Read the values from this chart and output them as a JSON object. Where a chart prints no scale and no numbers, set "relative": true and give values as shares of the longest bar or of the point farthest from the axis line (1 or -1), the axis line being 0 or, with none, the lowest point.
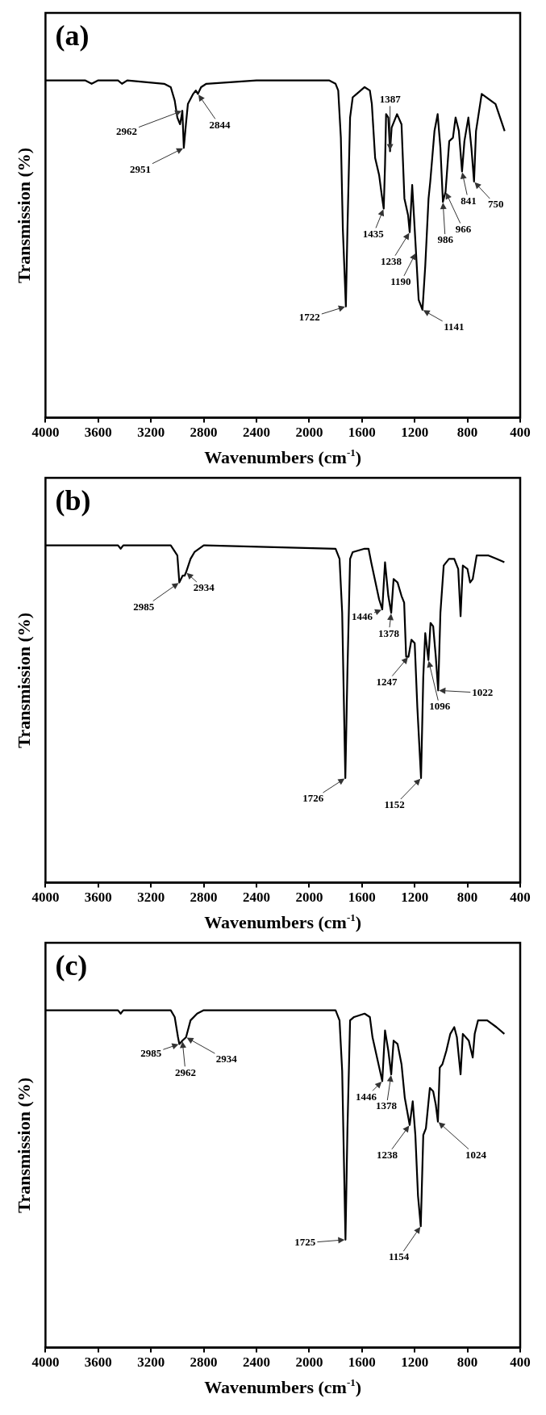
{
  "chart_data": [
    {
      "type": "line",
      "title": "(a)",
      "xlabel": "Wavenumbers (cm$^{-1}$)",
      "ylabel": "Transmission (%)",
      "relative": true,
      "color": "#000000",
      "xlim": [
        4000,
        400
      ],
      "xticks": [
        4000,
        3600,
        3200,
        2800,
        2400,
        2000,
        1600,
        1200,
        800,
        400
      ],
      "x": [
        4000,
        3700,
        3650,
        3600,
        3450,
        3420,
        3380,
        3100,
        3050,
        3020,
        3000,
        2980,
        2970,
        2962,
        2951,
        2935,
        2920,
        2880,
        2860,
        2844,
        2820,
        2780,
        2400,
        2000,
        1850,
        1800,
        1780,
        1760,
        1745,
        1722,
        1710,
        1690,
        1670,
        1640,
        1580,
        1540,
        1525,
        1500,
        1470,
        1450,
        1435,
        1425,
        1417,
        1400,
        1387,
        1375,
        1334,
        1300,
        1278,
        1250,
        1238,
        1219,
        1190,
        1170,
        1141,
        1120,
        1095,
        1082,
        1050,
        1026,
        1005,
        986,
        966,
        938,
        910,
        890,
        865,
        841,
        823,
        793,
        770,
        750,
        735,
        692,
        587,
        518
      ],
      "values": [
        1.0,
        1.0,
        0.99,
        1.0,
        1.0,
        0.99,
        1.0,
        0.99,
        0.98,
        0.94,
        0.89,
        0.87,
        0.89,
        0.91,
        0.8,
        0.87,
        0.93,
        0.96,
        0.97,
        0.96,
        0.98,
        0.99,
        1.0,
        1.0,
        1.0,
        0.99,
        0.97,
        0.83,
        0.56,
        0.33,
        0.56,
        0.89,
        0.95,
        0.96,
        0.98,
        0.97,
        0.93,
        0.77,
        0.72,
        0.66,
        0.62,
        0.75,
        0.9,
        0.89,
        0.79,
        0.86,
        0.9,
        0.87,
        0.65,
        0.6,
        0.55,
        0.69,
        0.49,
        0.35,
        0.32,
        0.45,
        0.65,
        0.7,
        0.85,
        0.9,
        0.8,
        0.64,
        0.67,
        0.82,
        0.83,
        0.89,
        0.85,
        0.73,
        0.82,
        0.89,
        0.8,
        0.7,
        0.85,
        0.96,
        0.93,
        0.85
      ],
      "annotations": [
        {
          "text": "2962",
          "x": 2962,
          "y": 0.91
        },
        {
          "text": "2951",
          "x": 2951,
          "y": 0.8
        },
        {
          "text": "2844",
          "x": 2844,
          "y": 0.96
        },
        {
          "text": "1722",
          "x": 1722,
          "y": 0.33
        },
        {
          "text": "1435",
          "x": 1435,
          "y": 0.62
        },
        {
          "text": "1387",
          "x": 1387,
          "y": 0.79
        },
        {
          "text": "1238",
          "x": 1238,
          "y": 0.55
        },
        {
          "text": "1190",
          "x": 1190,
          "y": 0.49
        },
        {
          "text": "1141",
          "x": 1141,
          "y": 0.32
        },
        {
          "text": "986",
          "x": 986,
          "y": 0.64
        },
        {
          "text": "966",
          "x": 966,
          "y": 0.67
        },
        {
          "text": "841",
          "x": 841,
          "y": 0.73
        },
        {
          "text": "750",
          "x": 750,
          "y": 0.7
        }
      ]
    },
    {
      "type": "line",
      "title": "(b)",
      "xlabel": "Wavenumbers (cm$^{-1}$)",
      "ylabel": "Transmission (%)",
      "relative": true,
      "color": "#000000",
      "xlim": [
        4000,
        400
      ],
      "xticks": [
        4000,
        3600,
        3200,
        2800,
        2400,
        2000,
        1600,
        1200,
        800,
        400
      ],
      "x": [
        4000,
        3450,
        3430,
        3410,
        3050,
        3000,
        2985,
        2960,
        2945,
        2934,
        2900,
        2870,
        2800,
        1800,
        1770,
        1750,
        1726,
        1710,
        1690,
        1670,
        1580,
        1550,
        1530,
        1470,
        1446,
        1425,
        1400,
        1378,
        1360,
        1330,
        1300,
        1280,
        1265,
        1247,
        1225,
        1200,
        1180,
        1152,
        1135,
        1120,
        1105,
        1096,
        1080,
        1060,
        1040,
        1022,
        1005,
        980,
        940,
        900,
        870,
        852,
        835,
        800,
        780,
        760,
        730,
        700,
        640,
        580,
        520
      ],
      "values": [
        1.0,
        1.0,
        0.99,
        1.0,
        1.0,
        0.97,
        0.89,
        0.91,
        0.91,
        0.92,
        0.96,
        0.98,
        1.0,
        0.99,
        0.96,
        0.8,
        0.31,
        0.63,
        0.96,
        0.98,
        0.99,
        0.99,
        0.95,
        0.84,
        0.81,
        0.95,
        0.85,
        0.8,
        0.9,
        0.89,
        0.85,
        0.83,
        0.67,
        0.67,
        0.72,
        0.71,
        0.52,
        0.31,
        0.61,
        0.74,
        0.69,
        0.66,
        0.77,
        0.76,
        0.67,
        0.57,
        0.8,
        0.94,
        0.96,
        0.96,
        0.93,
        0.79,
        0.94,
        0.93,
        0.89,
        0.9,
        0.97,
        0.97,
        0.97,
        0.96,
        0.95
      ],
      "annotations": [
        {
          "text": "2985",
          "x": 2985,
          "y": 0.89
        },
        {
          "text": "2934",
          "x": 2934,
          "y": 0.92
        },
        {
          "text": "1726",
          "x": 1726,
          "y": 0.31
        },
        {
          "text": "1446",
          "x": 1446,
          "y": 0.81
        },
        {
          "text": "1378",
          "x": 1378,
          "y": 0.8
        },
        {
          "text": "1247",
          "x": 1247,
          "y": 0.67
        },
        {
          "text": "1152",
          "x": 1152,
          "y": 0.31
        },
        {
          "text": "1096",
          "x": 1096,
          "y": 0.66
        },
        {
          "text": "1022",
          "x": 1022,
          "y": 0.57
        }
      ]
    },
    {
      "type": "line",
      "title": "(c)",
      "xlabel": "Wavenumbers (cm$^{-1}$)",
      "ylabel": "Transmission (%)",
      "relative": true,
      "color": "#000000",
      "xlim": [
        4000,
        400
      ],
      "xticks": [
        4000,
        3600,
        3200,
        2800,
        2400,
        2000,
        1600,
        1200,
        800,
        400
      ],
      "x": [
        4000,
        3450,
        3430,
        3410,
        3050,
        3020,
        2995,
        2985,
        2962,
        2934,
        2900,
        2850,
        2800,
        1800,
        1770,
        1750,
        1725,
        1710,
        1690,
        1660,
        1580,
        1540,
        1520,
        1446,
        1425,
        1400,
        1378,
        1360,
        1330,
        1300,
        1275,
        1238,
        1215,
        1195,
        1175,
        1154,
        1135,
        1115,
        1085,
        1060,
        1040,
        1024,
        1010,
        990,
        960,
        930,
        900,
        880,
        852,
        835,
        790,
        760,
        745,
        720,
        650,
        580,
        520
      ],
      "values": [
        1.0,
        1.0,
        0.99,
        1.0,
        1.0,
        0.98,
        0.92,
        0.9,
        0.91,
        0.92,
        0.97,
        0.99,
        1.0,
        1.0,
        0.97,
        0.82,
        0.32,
        0.65,
        0.97,
        0.98,
        0.99,
        0.98,
        0.92,
        0.79,
        0.94,
        0.88,
        0.81,
        0.91,
        0.9,
        0.84,
        0.74,
        0.66,
        0.73,
        0.63,
        0.45,
        0.36,
        0.63,
        0.65,
        0.77,
        0.76,
        0.72,
        0.67,
        0.83,
        0.84,
        0.88,
        0.93,
        0.95,
        0.92,
        0.81,
        0.93,
        0.91,
        0.86,
        0.93,
        0.97,
        0.97,
        0.95,
        0.93
      ],
      "annotations": [
        {
          "text": "2985",
          "x": 2985,
          "y": 0.9
        },
        {
          "text": "2962",
          "x": 2962,
          "y": 0.91
        },
        {
          "text": "2934",
          "x": 2934,
          "y": 0.92
        },
        {
          "text": "1725",
          "x": 1725,
          "y": 0.32
        },
        {
          "text": "1446",
          "x": 1446,
          "y": 0.79
        },
        {
          "text": "1378",
          "x": 1378,
          "y": 0.81
        },
        {
          "text": "1238",
          "x": 1238,
          "y": 0.66
        },
        {
          "text": "1154",
          "x": 1154,
          "y": 0.36
        },
        {
          "text": "1024",
          "x": 1024,
          "y": 0.67
        }
      ]
    }
  ]
}
